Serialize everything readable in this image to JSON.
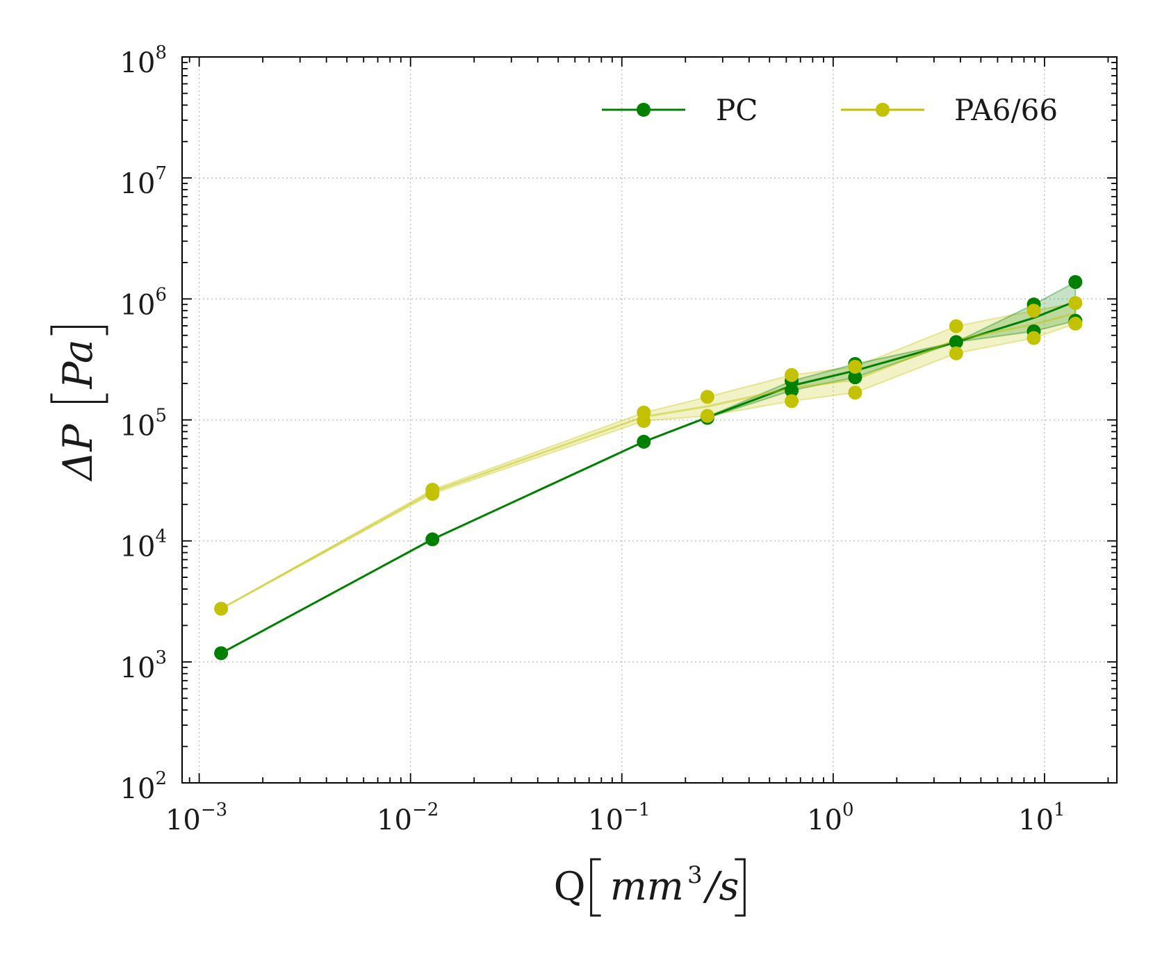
{
  "chart_data": {
    "type": "line",
    "xscale": "log",
    "yscale": "log",
    "xlim": [
      0.00083,
      22
    ],
    "ylim": [
      100,
      100000000
    ],
    "xlabel": {
      "main": "Q",
      "unit": "mm",
      "unit_exp": "3",
      "unit_suffix": "/s"
    },
    "ylabel": {
      "main": "ΔP",
      "unit": "Pa"
    },
    "x_ticks": [
      {
        "base": "10",
        "exp": "−3",
        "value": 0.001
      },
      {
        "base": "10",
        "exp": "−2",
        "value": 0.01
      },
      {
        "base": "10",
        "exp": "−1",
        "value": 0.1
      },
      {
        "base": "10",
        "exp": "0",
        "value": 1
      },
      {
        "base": "10",
        "exp": "1",
        "value": 10
      }
    ],
    "y_ticks": [
      {
        "base": "10",
        "exp": "2",
        "value": 100
      },
      {
        "base": "10",
        "exp": "3",
        "value": 1000
      },
      {
        "base": "10",
        "exp": "4",
        "value": 10000
      },
      {
        "base": "10",
        "exp": "5",
        "value": 100000
      },
      {
        "base": "10",
        "exp": "6",
        "value": 1000000
      },
      {
        "base": "10",
        "exp": "7",
        "value": 10000000
      },
      {
        "base": "10",
        "exp": "8",
        "value": 100000000
      }
    ],
    "grid": true,
    "legend_position": "top-right",
    "series": [
      {
        "name": "PC",
        "color": "#008000",
        "x": [
          0.00127,
          0.0127,
          0.127,
          0.254,
          0.636,
          1.27,
          3.82,
          8.9,
          14.0
        ],
        "y_low": [
          1180,
          10300,
          66000,
          104000,
          175000,
          225000,
          440000,
          540000,
          660000
        ],
        "y_high": [
          1180,
          10300,
          66000,
          106000,
          210000,
          290000,
          440000,
          900000,
          1380000
        ]
      },
      {
        "name": "PA6/66",
        "color": "#c2c200",
        "x": [
          0.00127,
          0.0127,
          0.127,
          0.254,
          0.636,
          1.27,
          3.82,
          8.9,
          14.0
        ],
        "y_low": [
          2750,
          24500,
          98000,
          108000,
          143000,
          168000,
          355000,
          475000,
          625000
        ],
        "y_high": [
          2750,
          26500,
          115000,
          155000,
          235000,
          275000,
          595000,
          800000,
          925000
        ]
      }
    ]
  }
}
